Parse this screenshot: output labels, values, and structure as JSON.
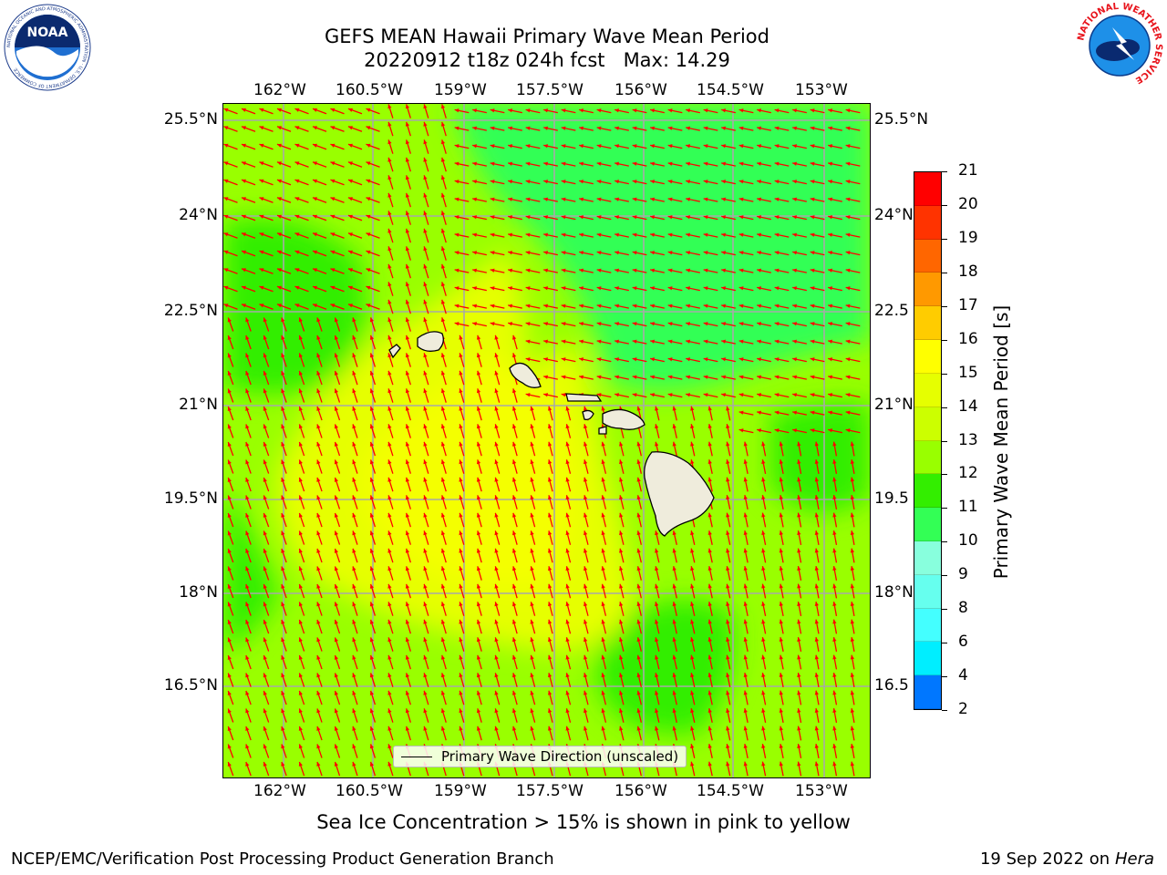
{
  "header": {
    "title_line1": "GEFS MEAN Hawaii Primary Wave Mean Period",
    "title_line2": "20220912 t18z 024h fcst   Max: 14.29"
  },
  "logos": {
    "noaa_text": "NOAA",
    "noaa_ring_text": "NATIONAL OCEANIC AND ATMOSPHERIC ADMINISTRATION · U.S. DEPARTMENT OF COMMERCE",
    "nws_ring_text": "NATIONAL WEATHER SERVICE"
  },
  "map": {
    "lon_labels": [
      "162°W",
      "160.5°W",
      "159°W",
      "157.5°W",
      "156°W",
      "154.5°W",
      "153°W"
    ],
    "lat_labels_left": [
      "25.5°N",
      "24°N",
      "22.5°N",
      "21°N",
      "19.5°N",
      "18°N",
      "16.5°N"
    ],
    "lat_labels_right": [
      "25.5°N",
      "24°N",
      "22.5",
      "21°N",
      "19.5",
      "18°N",
      "16.5"
    ],
    "legend_label": "Primary Wave Direction (unscaled)",
    "arrow_color": "#ff0000",
    "land_color": "#efecdc"
  },
  "colorbar": {
    "label": "Primary Wave Mean Period [s]",
    "ticks": [
      "21",
      "20",
      "19",
      "18",
      "17",
      "16",
      "15",
      "14",
      "13",
      "12",
      "11",
      "10",
      "9",
      "8",
      "6",
      "4",
      "2"
    ],
    "colors": [
      "#ff0000",
      "#ff3300",
      "#ff6600",
      "#ff9900",
      "#ffcc00",
      "#ffff00",
      "#e6ff00",
      "#ccff00",
      "#99ff00",
      "#33ee00",
      "#33ff55",
      "#88ffdd",
      "#66ffee",
      "#44ffff",
      "#00eeff",
      "#0077ff",
      "#0000ff"
    ]
  },
  "footer": {
    "sea_ice_note": "Sea Ice Concentration > 15% is shown in pink to yellow",
    "credit": "NCEP/EMC/Verification Post Processing Product Generation Branch",
    "date": "19 Sep 2022 on",
    "host": "Hera"
  }
}
